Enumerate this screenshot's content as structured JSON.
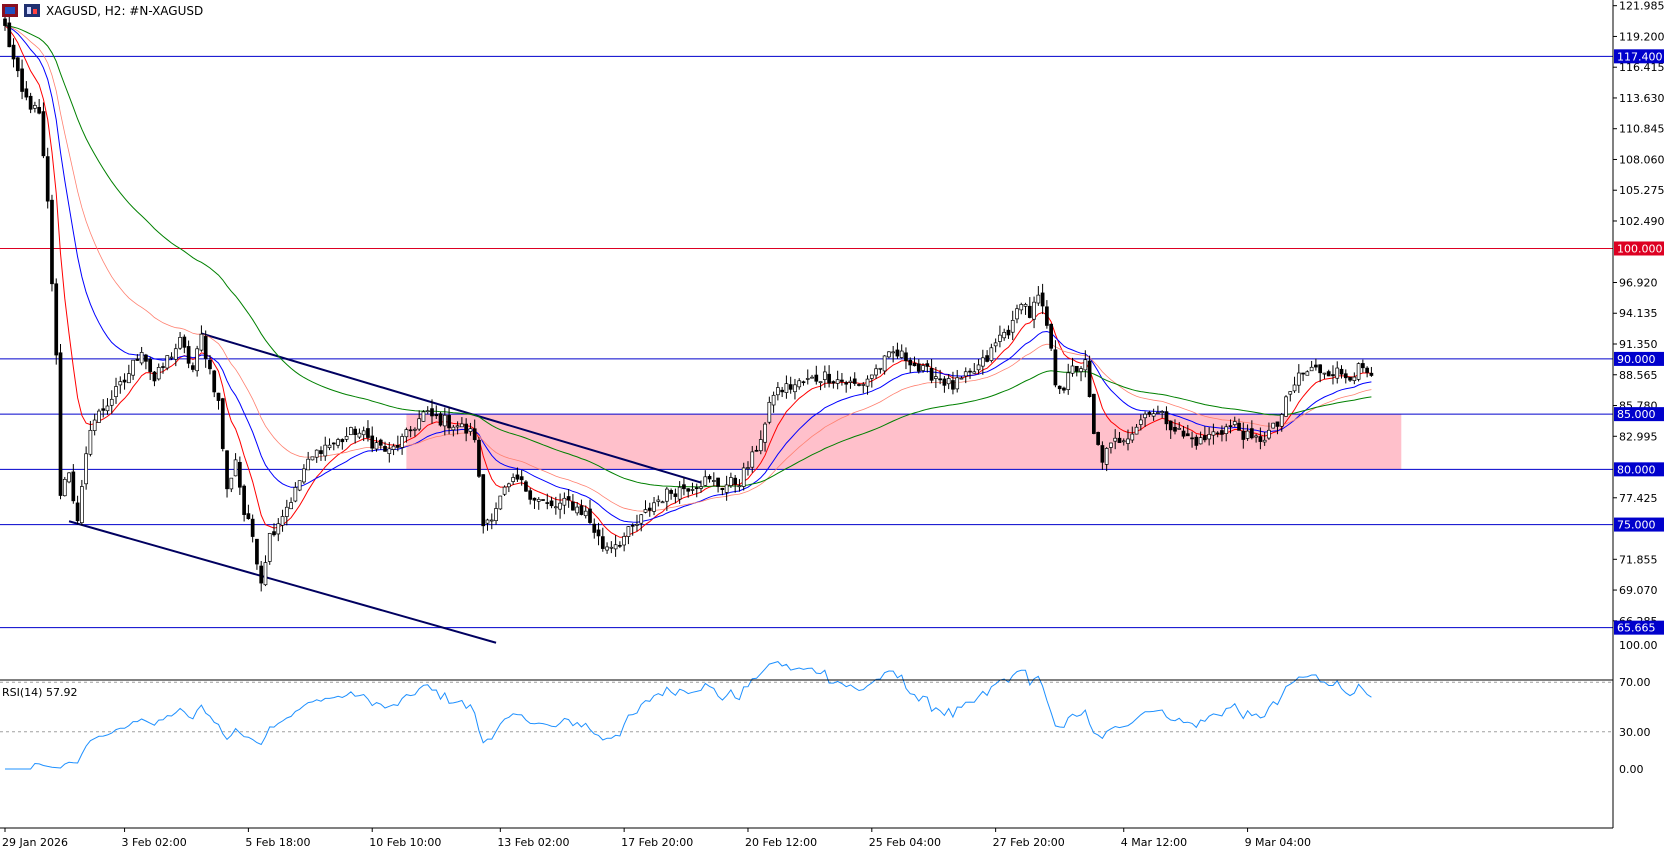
{
  "header": {
    "symbol_label": "XAGUSD, H2:  #N-XAGUSD"
  },
  "colors": {
    "blue_line": "#0000cc",
    "red_line": "#dd0022",
    "zone_fill": "#ffc0cb",
    "candle": "#000000",
    "ma_fast": "#ff0000",
    "ma_mid": "#0000ff",
    "ma_slow_light": "#ff8070",
    "ma_long": "#008000",
    "rsi": "#1e90ff",
    "trendline": "#000060"
  },
  "chart_data": {
    "type": "candlestick",
    "instrument": "XAGUSD",
    "timeframe": "H2",
    "y_axis": {
      "range": [
        65.0,
        122.5
      ],
      "ticks": [
        "121.985",
        "119.200",
        "116.415",
        "113.630",
        "110.845",
        "108.060",
        "105.275",
        "102.490",
        "96.920",
        "94.135",
        "91.350",
        "88.565",
        "85.780",
        "82.995",
        "77.425",
        "71.855",
        "69.070",
        "66.285"
      ]
    },
    "x_axis": {
      "bar_count": 350,
      "ticks": [
        {
          "bar": 0,
          "label": "29 Jan 2026"
        },
        {
          "bar": 28,
          "label": "3 Feb 02:00"
        },
        {
          "bar": 57,
          "label": "5 Feb 18:00"
        },
        {
          "bar": 86,
          "label": "10 Feb 10:00"
        },
        {
          "bar": 116,
          "label": "13 Feb 02:00"
        },
        {
          "bar": 145,
          "label": "17 Feb 20:00"
        },
        {
          "bar": 174,
          "label": "20 Feb 12:00"
        },
        {
          "bar": 203,
          "label": "25 Feb 04:00"
        },
        {
          "bar": 232,
          "label": "27 Feb 20:00"
        },
        {
          "bar": 262,
          "label": "4 Mar 12:00"
        },
        {
          "bar": 291,
          "label": "9 Mar 04:00"
        }
      ]
    },
    "price_keypoints": [
      [
        0,
        120.0
      ],
      [
        4,
        114.0
      ],
      [
        8,
        112.0
      ],
      [
        10,
        104.0
      ],
      [
        12,
        90.0
      ],
      [
        13,
        78.0
      ],
      [
        15,
        80.0
      ],
      [
        17,
        75.0
      ],
      [
        20,
        84.0
      ],
      [
        24,
        86.0
      ],
      [
        28,
        88.0
      ],
      [
        32,
        91.0
      ],
      [
        35,
        88.0
      ],
      [
        38,
        90.0
      ],
      [
        41,
        91.5
      ],
      [
        44,
        89.0
      ],
      [
        46,
        92.0
      ],
      [
        48,
        89.0
      ],
      [
        50,
        86.0
      ],
      [
        52,
        78.0
      ],
      [
        54,
        81.0
      ],
      [
        56,
        76.0
      ],
      [
        58,
        74.0
      ],
      [
        60,
        70.0
      ],
      [
        62,
        74.0
      ],
      [
        65,
        76.0
      ],
      [
        68,
        78.0
      ],
      [
        70,
        80.0
      ],
      [
        74,
        82.0
      ],
      [
        78,
        82.5
      ],
      [
        82,
        83.5
      ],
      [
        86,
        82.5
      ],
      [
        90,
        81.5
      ],
      [
        94,
        83.0
      ],
      [
        98,
        85.0
      ],
      [
        102,
        84.5
      ],
      [
        106,
        84.0
      ],
      [
        110,
        83.0
      ],
      [
        112,
        75.0
      ],
      [
        114,
        76.0
      ],
      [
        117,
        78.0
      ],
      [
        120,
        79.0
      ],
      [
        124,
        77.5
      ],
      [
        128,
        76.5
      ],
      [
        132,
        77.0
      ],
      [
        136,
        76.0
      ],
      [
        140,
        73.0
      ],
      [
        144,
        73.5
      ],
      [
        148,
        75.0
      ],
      [
        152,
        77.0
      ],
      [
        156,
        78.0
      ],
      [
        160,
        78.5
      ],
      [
        164,
        79.0
      ],
      [
        168,
        78.5
      ],
      [
        172,
        79.0
      ],
      [
        175,
        81.0
      ],
      [
        178,
        84.0
      ],
      [
        180,
        87.0
      ],
      [
        184,
        87.5
      ],
      [
        188,
        88.0
      ],
      [
        192,
        88.5
      ],
      [
        196,
        88.0
      ],
      [
        200,
        87.5
      ],
      [
        204,
        89.0
      ],
      [
        208,
        90.5
      ],
      [
        212,
        90.0
      ],
      [
        214,
        89.0
      ],
      [
        218,
        88.5
      ],
      [
        222,
        87.5
      ],
      [
        226,
        88.5
      ],
      [
        230,
        90.0
      ],
      [
        233,
        92.0
      ],
      [
        236,
        93.0
      ],
      [
        238,
        95.5
      ],
      [
        240,
        94.0
      ],
      [
        242,
        95.5
      ],
      [
        244,
        93.0
      ],
      [
        246,
        88.0
      ],
      [
        248,
        87.5
      ],
      [
        250,
        89.0
      ],
      [
        253,
        89.5
      ],
      [
        255,
        83.0
      ],
      [
        257,
        81.0
      ],
      [
        260,
        82.5
      ],
      [
        264,
        83.5
      ],
      [
        268,
        85.5
      ],
      [
        272,
        84.5
      ],
      [
        276,
        83.0
      ],
      [
        280,
        82.5
      ],
      [
        284,
        83.5
      ],
      [
        288,
        84.0
      ],
      [
        292,
        82.5
      ],
      [
        295,
        83.0
      ],
      [
        298,
        84.0
      ],
      [
        300,
        86.0
      ],
      [
        303,
        88.5
      ],
      [
        306,
        89.0
      ],
      [
        310,
        89.0
      ],
      [
        314,
        88.5
      ],
      [
        317,
        89.0
      ],
      [
        320,
        88.5
      ]
    ],
    "rsi": {
      "name": "RSI(14) 57.92",
      "period": 14,
      "last_value": 57.92,
      "range": [
        0,
        100
      ],
      "ticks": [
        "100.00",
        "70.00",
        "30.00",
        "0.00"
      ],
      "levels": [
        70,
        30
      ]
    },
    "horizontal_lines": [
      {
        "price": 117.4,
        "label": "117.400",
        "color": "blue"
      },
      {
        "price": 100.0,
        "label": "100.000",
        "color": "red"
      },
      {
        "price": 90.0,
        "label": "90.000",
        "color": "blue"
      },
      {
        "price": 85.0,
        "label": "85.000",
        "color": "blue"
      },
      {
        "price": 80.0,
        "label": "80.000",
        "color": "blue"
      },
      {
        "price": 75.0,
        "label": "75.000",
        "color": "blue"
      },
      {
        "price": 65.665,
        "label": "65.665",
        "color": "blue"
      }
    ],
    "zone": {
      "from_bar": 94,
      "to_bar": 327,
      "top": 85.0,
      "bottom": 80.0
    },
    "trendlines": [
      {
        "bar1": 46,
        "price1": 92.3,
        "bar2": 163,
        "price2": 78.8
      },
      {
        "bar1": 15,
        "price1": 75.3,
        "bar2": 115,
        "price2": 64.3
      }
    ]
  }
}
